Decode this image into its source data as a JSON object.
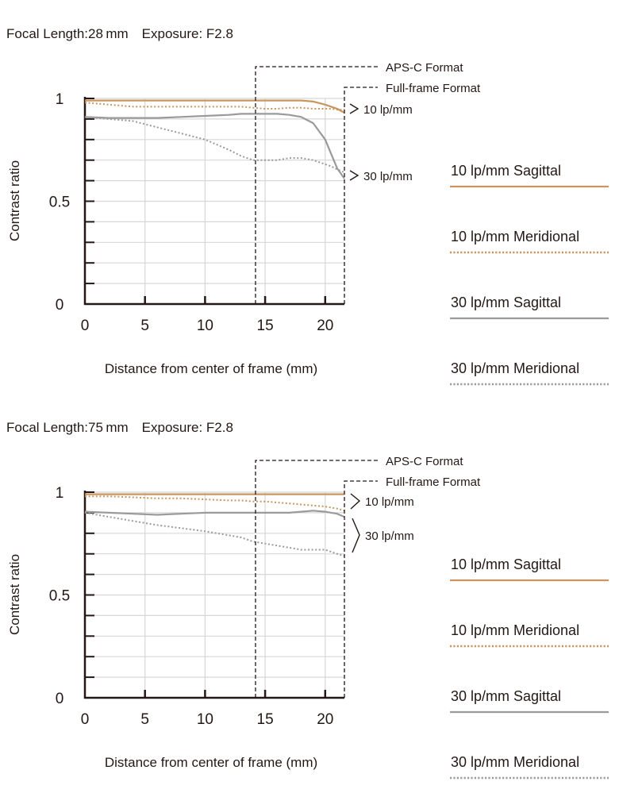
{
  "colors": {
    "axis": "#231815",
    "grid": "#d7d7d7",
    "s10": "#c8965e",
    "m10": "#c8965e",
    "s30": "#9a9a9a",
    "m30": "#9a9a9a"
  },
  "labels": {
    "contrast_ratio": "Contrast ratio",
    "distance": "Distance from center of frame (mm)",
    "apsc": "APS-C Format",
    "fullframe": "Full-frame Format",
    "lp10": "10 lp/mm",
    "lp30": "30 lp/mm"
  },
  "legend": [
    {
      "label": "10 lp/mm Sagittal",
      "style": "solid",
      "color": "#c8965e"
    },
    {
      "label": "10 lp/mm Meridional",
      "style": "dotted",
      "color": "#c8965e"
    },
    {
      "label": "30 lp/mm Sagittal",
      "style": "solid",
      "color": "#9a9a9a"
    },
    {
      "label": "30 lp/mm Meridional",
      "style": "dotted",
      "color": "#9a9a9a"
    }
  ],
  "chart_data": [
    {
      "type": "line",
      "title": "Focal Length:28 mm Exposure: F2.8",
      "xlabel": "Distance from center of frame (mm)",
      "ylabel": "Contrast ratio",
      "xlim": [
        0,
        21.6
      ],
      "ylim": [
        0,
        1
      ],
      "xticks": [
        "0",
        "5",
        "10",
        "15",
        "20"
      ],
      "yticks": [
        "0",
        "0.5",
        "1"
      ],
      "grid": true,
      "apsc_limit": 14.2,
      "fullframe_limit": 21.6,
      "x": [
        0,
        2,
        4,
        6,
        8,
        10,
        12,
        13,
        14,
        15,
        16,
        17,
        18,
        19,
        20,
        20.5,
        21,
        21.6
      ],
      "series": [
        {
          "name": "10 lp/mm Sagittal",
          "style": "solid",
          "color": "#c8965e",
          "values": [
            0.99,
            0.99,
            0.99,
            0.99,
            0.99,
            0.99,
            0.99,
            0.99,
            0.99,
            0.99,
            0.99,
            0.99,
            0.99,
            0.985,
            0.97,
            0.96,
            0.95,
            0.93
          ]
        },
        {
          "name": "10 lp/mm Meridional",
          "style": "dotted",
          "color": "#c8965e",
          "values": [
            0.98,
            0.97,
            0.96,
            0.96,
            0.96,
            0.96,
            0.96,
            0.96,
            0.955,
            0.95,
            0.95,
            0.955,
            0.955,
            0.95,
            0.95,
            0.95,
            0.945,
            0.945
          ]
        },
        {
          "name": "30 lp/mm Sagittal",
          "style": "solid",
          "color": "#9a9a9a",
          "values": [
            0.91,
            0.905,
            0.905,
            0.905,
            0.91,
            0.915,
            0.92,
            0.925,
            0.925,
            0.925,
            0.925,
            0.92,
            0.91,
            0.88,
            0.8,
            0.73,
            0.66,
            0.61
          ]
        },
        {
          "name": "30 lp/mm Meridional",
          "style": "dotted",
          "color": "#9a9a9a",
          "values": [
            0.91,
            0.9,
            0.89,
            0.86,
            0.83,
            0.8,
            0.75,
            0.72,
            0.7,
            0.7,
            0.7,
            0.71,
            0.71,
            0.7,
            0.68,
            0.67,
            0.655,
            0.64
          ]
        }
      ]
    },
    {
      "type": "line",
      "title": "Focal Length:75 mm Exposure: F2.8",
      "xlabel": "Distance from center of frame (mm)",
      "ylabel": "Contrast ratio",
      "xlim": [
        0,
        21.6
      ],
      "ylim": [
        0,
        1
      ],
      "xticks": [
        "0",
        "5",
        "10",
        "15",
        "20"
      ],
      "yticks": [
        "0",
        "0.5",
        "1"
      ],
      "grid": true,
      "apsc_limit": 14.2,
      "fullframe_limit": 21.6,
      "x": [
        0,
        2,
        4,
        6,
        8,
        10,
        12,
        13,
        14,
        15,
        16,
        17,
        18,
        19,
        20,
        20.5,
        21,
        21.6
      ],
      "series": [
        {
          "name": "10 lp/mm Sagittal",
          "style": "solid",
          "color": "#c8965e",
          "values": [
            0.99,
            0.99,
            0.99,
            0.99,
            0.99,
            0.99,
            0.99,
            0.99,
            0.99,
            0.99,
            0.99,
            0.99,
            0.99,
            0.99,
            0.99,
            0.99,
            0.99,
            0.99
          ]
        },
        {
          "name": "10 lp/mm Meridional",
          "style": "dotted",
          "color": "#c8965e",
          "values": [
            0.98,
            0.98,
            0.975,
            0.97,
            0.97,
            0.965,
            0.96,
            0.96,
            0.955,
            0.955,
            0.95,
            0.945,
            0.94,
            0.935,
            0.93,
            0.925,
            0.92,
            0.91
          ]
        },
        {
          "name": "30 lp/mm Sagittal",
          "style": "solid",
          "color": "#9a9a9a",
          "values": [
            0.905,
            0.9,
            0.895,
            0.89,
            0.895,
            0.9,
            0.9,
            0.9,
            0.9,
            0.9,
            0.9,
            0.9,
            0.905,
            0.91,
            0.905,
            0.9,
            0.895,
            0.88
          ]
        },
        {
          "name": "30 lp/mm Meridional",
          "style": "dotted",
          "color": "#9a9a9a",
          "values": [
            0.9,
            0.88,
            0.86,
            0.84,
            0.825,
            0.81,
            0.79,
            0.78,
            0.76,
            0.75,
            0.74,
            0.73,
            0.72,
            0.72,
            0.72,
            0.71,
            0.7,
            0.69
          ]
        }
      ]
    }
  ]
}
